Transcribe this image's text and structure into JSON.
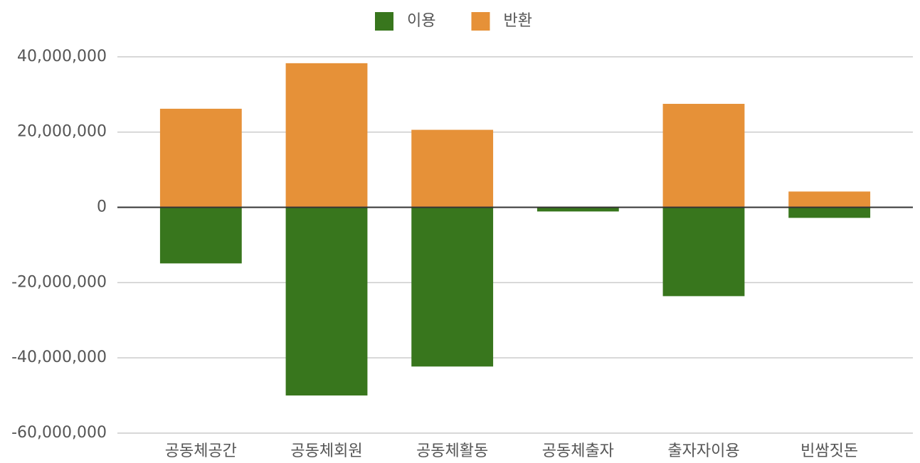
{
  "chart_data": {
    "type": "bar",
    "stacked": true,
    "categories": [
      "공동체공간",
      "공동체회원",
      "공동체활동",
      "공동체출자",
      "출자자이용",
      "빈쌈짓돈"
    ],
    "series": [
      {
        "name": "이용",
        "color": "#38761d",
        "values": [
          -14900000,
          -50000000,
          -42300000,
          -1100000,
          -23600000,
          -2800000
        ]
      },
      {
        "name": "반환",
        "color": "#e69138",
        "values": [
          26200000,
          38300000,
          20600000,
          200000,
          27500000,
          4200000
        ]
      }
    ],
    "ylim": [
      -60000000,
      43000000
    ],
    "yticks": [
      {
        "value": -60000000,
        "label": "-60,000,000"
      },
      {
        "value": -40000000,
        "label": "-40,000,000"
      },
      {
        "value": -20000000,
        "label": "-20,000,000"
      },
      0,
      {
        "value": 20000000,
        "label": "20,000,000"
      },
      {
        "value": 40000000,
        "label": "40,000,000"
      }
    ],
    "grid": true,
    "legend": "top"
  }
}
